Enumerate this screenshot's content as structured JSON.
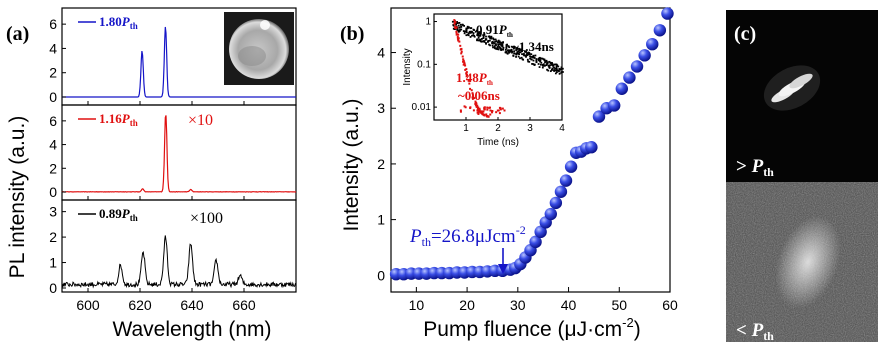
{
  "panel_a": {
    "label": "(a)",
    "ylabel": "PL intensity (a.u.)",
    "xlabel": "Wavelength (nm)",
    "x_ticks": [
      "600",
      "620",
      "640",
      "660"
    ],
    "subplots": [
      {
        "ann_prefix": "1.80",
        "ann_p": "P",
        "ann_sub": "th",
        "multiplier": "",
        "color": "#1515c8",
        "y_ticks": [
          "0",
          "2",
          "4",
          "6"
        ],
        "peaks": [
          {
            "x": 620.8,
            "h": 3.8
          },
          {
            "x": 629.8,
            "h": 5.8
          }
        ]
      },
      {
        "ann_prefix": "1.16",
        "ann_p": "P",
        "ann_sub": "th",
        "multiplier": "×10",
        "color": "#e01010",
        "y_ticks": [
          "0",
          "2",
          "4",
          "6"
        ],
        "peaks": [
          {
            "x": 629.9,
            "h": 6.6
          },
          {
            "x": 621,
            "h": 0.25
          },
          {
            "x": 639.5,
            "h": 0.2
          }
        ]
      },
      {
        "ann_prefix": "0.89",
        "ann_p": "P",
        "ann_sub": "th",
        "multiplier": "×100",
        "color": "#000000",
        "y_ticks": [
          "0",
          "1",
          "2",
          "3"
        ],
        "peaks": [
          {
            "x": 612.5,
            "h": 0.75
          },
          {
            "x": 621.2,
            "h": 1.25
          },
          {
            "x": 629.8,
            "h": 1.85
          },
          {
            "x": 639.5,
            "h": 1.6
          },
          {
            "x": 649.3,
            "h": 0.95
          },
          {
            "x": 658.5,
            "h": 0.35
          }
        ]
      }
    ]
  },
  "panel_b": {
    "label": "(b)",
    "ylabel": "Intensity (a.u.)",
    "xlabel_main": "Pump fluence (μJ·cm",
    "xlabel_sup": "-2",
    "xlabel_end": ")",
    "x_ticks": [
      "10",
      "20",
      "30",
      "40",
      "50",
      "60"
    ],
    "y_ticks": [
      "0",
      "1",
      "2",
      "3",
      "4"
    ],
    "threshold_p": "P",
    "threshold_sub": "th",
    "threshold_text": "=26.8μJcm",
    "threshold_sup": "-2",
    "inset": {
      "ylabel": "Intensity",
      "xlabel": "Time (ns)",
      "x_ticks": [
        "1",
        "2",
        "3",
        "4"
      ],
      "y_ticks": [
        "0.01",
        "0.1",
        "1"
      ],
      "black_label_prefix": "0.91",
      "black_label_p": "P",
      "black_label_sub": "th",
      "black_tau": "~1.34ns",
      "red_label_prefix": "1.48",
      "red_label_p": "P",
      "red_label_sub": "th",
      "red_tau": "~0.06ns"
    }
  },
  "panel_c": {
    "label": "(c)",
    "top_label_sym": "> ",
    "top_label_p": "P",
    "top_label_sub": "th",
    "bottom_label_sym": "< ",
    "bottom_label_p": "P",
    "bottom_label_sub": "th"
  },
  "chart_data": [
    {
      "type": "line",
      "title": "",
      "xlabel": "Wavelength (nm)",
      "ylabel": "PL intensity (a.u.)",
      "xlim": [
        590,
        680
      ],
      "series": [
        {
          "name": "1.80Pth",
          "peaks_nm": [
            620.8,
            629.8
          ],
          "peak_heights": [
            3.8,
            5.8
          ],
          "ylim": [
            0,
            7
          ]
        },
        {
          "name": "1.16Pth ×10",
          "peaks_nm": [
            621,
            629.9,
            639.5
          ],
          "peak_heights": [
            0.25,
            6.6,
            0.2
          ],
          "ylim": [
            0,
            7
          ]
        },
        {
          "name": "0.89Pth ×100",
          "peaks_nm": [
            612.5,
            621.2,
            629.8,
            639.5,
            649.3,
            658.5
          ],
          "peak_heights": [
            0.75,
            1.25,
            1.85,
            1.6,
            0.95,
            0.35
          ],
          "ylim": [
            0,
            3.3
          ]
        }
      ]
    },
    {
      "type": "scatter",
      "title": "",
      "xlabel": "Pump fluence (μJ·cm-2)",
      "ylabel": "Intensity (a.u.)",
      "xlim": [
        5,
        60
      ],
      "ylim": [
        -0.3,
        4.8
      ],
      "x": [
        6,
        7.5,
        9,
        10.5,
        12,
        13.5,
        15,
        16.5,
        18,
        19.5,
        21,
        22.5,
        24,
        25.5,
        27,
        28.5,
        29.5,
        30.5,
        31.5,
        32.5,
        33.5,
        34.5,
        35.5,
        36.5,
        37.5,
        38.5,
        39.5,
        40.5,
        41.5,
        42.5,
        43.5,
        44.5,
        46,
        47.5,
        49,
        50.5,
        52,
        53.5,
        55,
        56.5,
        58,
        59.5
      ],
      "y": [
        0.02,
        0.02,
        0.03,
        0.03,
        0.03,
        0.04,
        0.04,
        0.04,
        0.05,
        0.05,
        0.06,
        0.06,
        0.07,
        0.08,
        0.08,
        0.1,
        0.13,
        0.2,
        0.32,
        0.45,
        0.6,
        0.78,
        0.95,
        1.1,
        1.3,
        1.5,
        1.7,
        1.95,
        2.2,
        2.22,
        2.28,
        2.3,
        2.85,
        3.0,
        3.05,
        3.35,
        3.55,
        3.75,
        3.95,
        4.15,
        4.4,
        4.7
      ]
    }
  ]
}
